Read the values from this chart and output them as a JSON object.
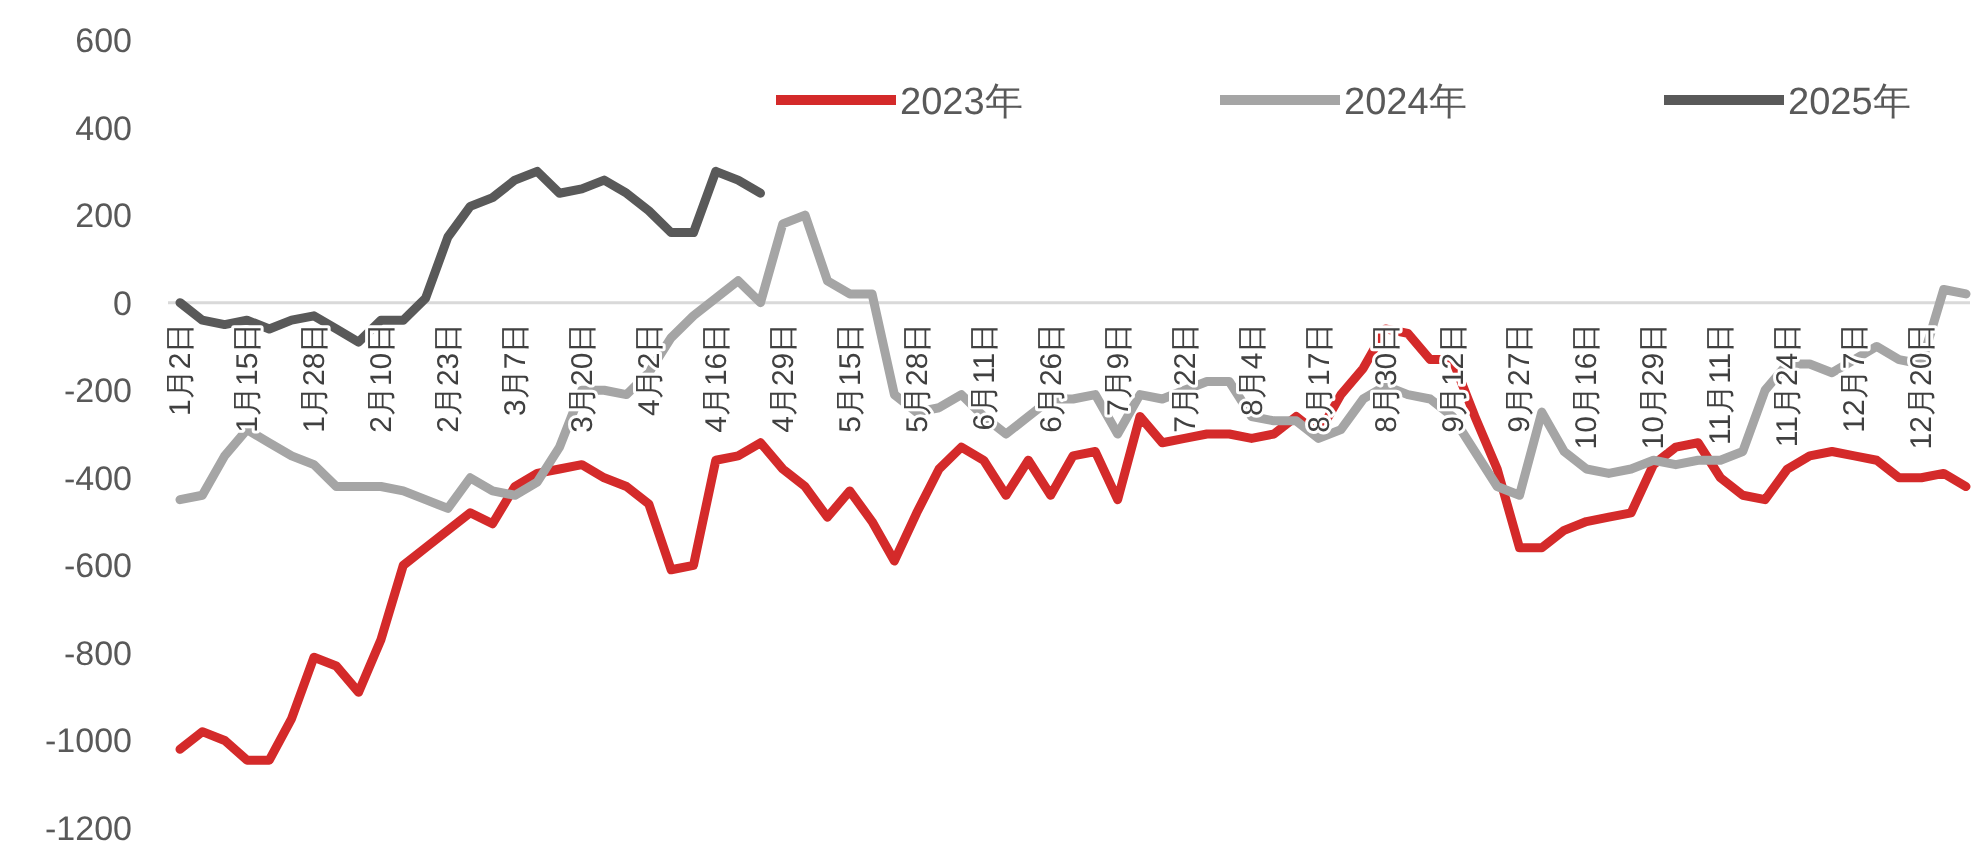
{
  "chart_data": {
    "type": "line",
    "legend": "top right",
    "ylim": [
      -1200,
      600
    ],
    "yticks": [
      -1200,
      -1000,
      -800,
      -600,
      -400,
      -200,
      0,
      200,
      400,
      600
    ],
    "categories": [
      "1月2日",
      null,
      null,
      "1月15日",
      null,
      null,
      "1月28日",
      null,
      null,
      "2月10日",
      null,
      null,
      "2月23日",
      null,
      null,
      "3月7日",
      null,
      null,
      "3月20日",
      null,
      null,
      "4月2日",
      null,
      null,
      "4月16日",
      null,
      null,
      "4月29日",
      null,
      null,
      "5月15日",
      null,
      null,
      "5月28日",
      null,
      null,
      "6月11日",
      null,
      null,
      "6月26日",
      null,
      null,
      "7月9日",
      null,
      null,
      "7月22日",
      null,
      null,
      "8月4日",
      null,
      null,
      "8月17日",
      null,
      null,
      "8月30日",
      null,
      null,
      "9月12日",
      null,
      null,
      "9月27日",
      null,
      null,
      "10月16日",
      null,
      null,
      "10月29日",
      null,
      null,
      "11月11日",
      null,
      null,
      "11月24日",
      null,
      null,
      "12月7日",
      null,
      null,
      "12月20日",
      null,
      null
    ],
    "series": [
      {
        "name": "2023年",
        "color": "#d42a2a",
        "values": [
          -1020,
          -980,
          -1000,
          -1045,
          -1045,
          -950,
          -810,
          -830,
          -890,
          -770,
          -600,
          -560,
          -520,
          -480,
          -505,
          -420,
          -390,
          -380,
          -370,
          -400,
          -420,
          -460,
          -610,
          -600,
          -360,
          -350,
          -320,
          -380,
          -420,
          -490,
          -430,
          -500,
          -590,
          -480,
          -380,
          -330,
          -360,
          -440,
          -360,
          -440,
          -350,
          -340,
          -450,
          -260,
          -320,
          -310,
          -300,
          -300,
          -310,
          -300,
          -260,
          -300,
          -210,
          -150,
          -60,
          -70,
          -130,
          -130,
          -260,
          -380,
          -560,
          -560,
          -520,
          -500,
          -490,
          -480,
          -370,
          -330,
          -320,
          -400,
          -440,
          -450,
          -380,
          -350,
          -340,
          -350,
          -360,
          -400,
          -400,
          -390,
          -420
        ]
      },
      {
        "name": "2024年",
        "color": "#a5a5a5",
        "values": [
          -450,
          -440,
          -350,
          -290,
          -320,
          -350,
          -370,
          -420,
          -420,
          -420,
          -430,
          -450,
          -470,
          -400,
          -430,
          -440,
          -410,
          -330,
          -200,
          -200,
          -210,
          -160,
          -80,
          -30,
          10,
          50,
          0,
          180,
          200,
          50,
          20,
          20,
          -210,
          -250,
          -240,
          -210,
          -260,
          -300,
          -260,
          -220,
          -220,
          -210,
          -300,
          -210,
          -220,
          -200,
          -180,
          -180,
          -260,
          -270,
          -270,
          -310,
          -290,
          -220,
          -190,
          -210,
          -220,
          -260,
          -340,
          -420,
          -440,
          -250,
          -340,
          -380,
          -390,
          -380,
          -360,
          -370,
          -360,
          -360,
          -340,
          -200,
          -140,
          -140,
          -160,
          -130,
          -100,
          -130,
          -140,
          30,
          20
        ]
      },
      {
        "name": "2025年",
        "color": "#595959",
        "values": [
          0,
          -40,
          -50,
          -40,
          -60,
          -40,
          -30,
          -60,
          -90,
          -40,
          -40,
          10,
          150,
          220,
          240,
          280,
          300,
          250,
          260,
          280,
          250,
          210,
          160,
          160,
          300,
          280,
          250,
          null,
          null,
          null,
          null,
          null,
          null,
          null,
          null,
          null,
          null,
          null,
          null,
          null,
          null,
          null,
          null,
          null,
          null,
          null,
          null,
          null,
          null,
          null,
          null,
          null,
          null,
          null,
          null,
          null,
          null,
          null,
          null,
          null,
          null,
          null,
          null,
          null,
          null,
          null,
          null,
          null,
          null,
          null,
          null,
          null,
          null,
          null,
          null,
          null,
          null,
          null,
          null,
          null,
          null
        ]
      }
    ]
  }
}
